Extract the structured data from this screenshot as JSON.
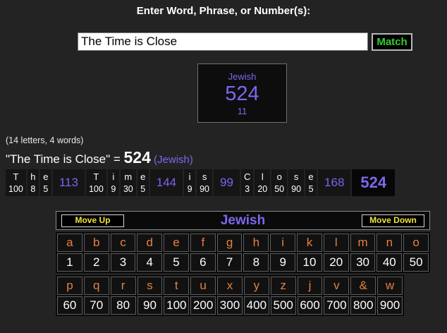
{
  "heading": {
    "title": "Enter Word, Phrase, or Number(s):"
  },
  "search": {
    "value": "The Time is Close",
    "match_label": "Match"
  },
  "result_box": {
    "cipher": "Jewish",
    "value": "524",
    "secondary": "11"
  },
  "meta": {
    "letters_words": "(14 letters, 4 words)"
  },
  "equation": {
    "phrase_quoted": "\"The Time is Close\"",
    "equals": " = ",
    "total": "524",
    "cipher_paren": " (Jewish)"
  },
  "breakdown": {
    "groups": [
      {
        "word": "The",
        "letters": [
          {
            "ch": "T",
            "v": "100"
          },
          {
            "ch": "h",
            "v": "8"
          },
          {
            "ch": "e",
            "v": "5"
          }
        ],
        "subtotal": "113"
      },
      {
        "word": "Time",
        "letters": [
          {
            "ch": "T",
            "v": "100"
          },
          {
            "ch": "i",
            "v": "9"
          },
          {
            "ch": "m",
            "v": "30"
          },
          {
            "ch": "e",
            "v": "5"
          }
        ],
        "subtotal": "144"
      },
      {
        "word": "is",
        "letters": [
          {
            "ch": "i",
            "v": "9"
          },
          {
            "ch": "s",
            "v": "90"
          }
        ],
        "subtotal": "99"
      },
      {
        "word": "Close",
        "letters": [
          {
            "ch": "C",
            "v": "3"
          },
          {
            "ch": "l",
            "v": "20"
          },
          {
            "ch": "o",
            "v": "50"
          },
          {
            "ch": "s",
            "v": "90"
          },
          {
            "ch": "e",
            "v": "5"
          }
        ],
        "subtotal": "168"
      }
    ],
    "total": "524"
  },
  "cipher_table": {
    "move_up_label": "Move Up",
    "title": "Jewish",
    "move_down_label": "Move Down",
    "rows": [
      {
        "letters": [
          "a",
          "b",
          "c",
          "d",
          "e",
          "f",
          "g",
          "h",
          "i",
          "k",
          "l",
          "m",
          "n",
          "o"
        ],
        "values": [
          "1",
          "2",
          "3",
          "4",
          "5",
          "6",
          "7",
          "8",
          "9",
          "10",
          "20",
          "30",
          "40",
          "50"
        ]
      },
      {
        "letters": [
          "p",
          "q",
          "r",
          "s",
          "t",
          "u",
          "x",
          "y",
          "z",
          "j",
          "v",
          "&",
          "w"
        ],
        "values": [
          "60",
          "70",
          "80",
          "90",
          "100",
          "200",
          "300",
          "400",
          "500",
          "600",
          "700",
          "800",
          "900"
        ]
      }
    ]
  },
  "colors": {
    "background": "#232323",
    "accent_purple": "#7b68ee",
    "letter_orange": "#e5803f",
    "button_yellow": "#f0e33c",
    "match_green": "#33cc33",
    "text_white": "#ffffff"
  }
}
